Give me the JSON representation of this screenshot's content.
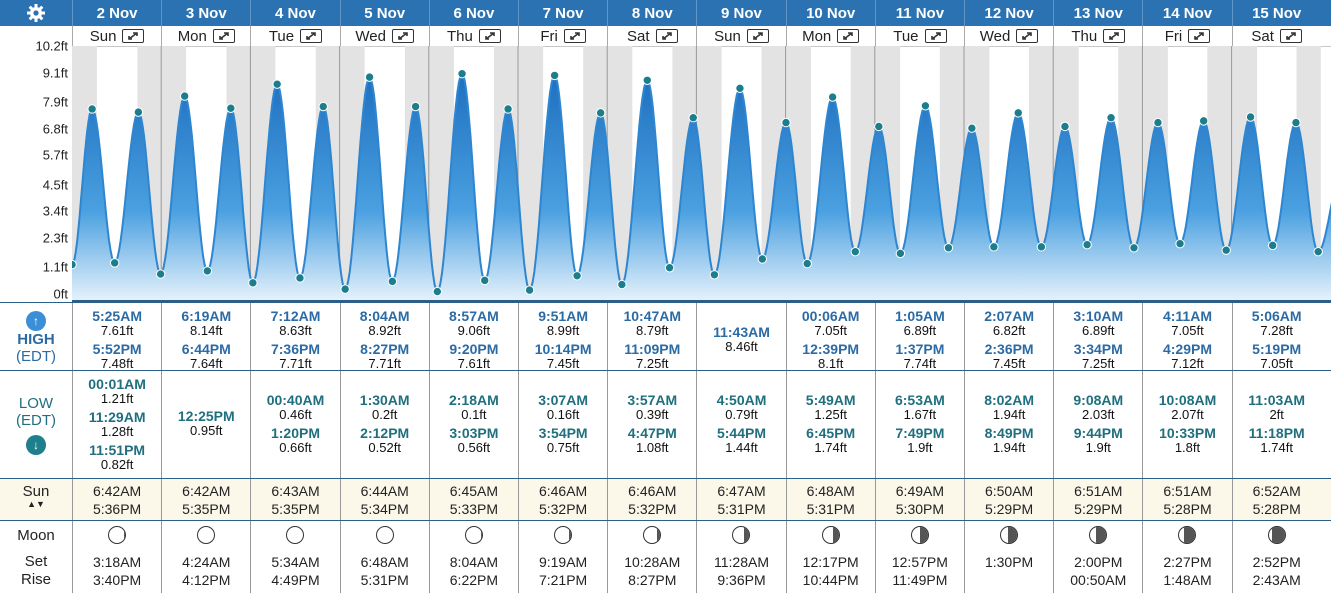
{
  "header": {
    "settings_icon": "gear-icon"
  },
  "labels": {
    "high": "HIGH",
    "high_tz": "(EDT)",
    "low": "LOW",
    "low_tz": "(EDT)",
    "sun": "Sun",
    "moon": "Moon",
    "set": "Set",
    "rise": "Rise"
  },
  "y_axis": {
    "ticks": [
      "0ft",
      "1.1ft",
      "2.3ft",
      "3.4ft",
      "4.5ft",
      "5.7ft",
      "6.8ft",
      "7.9ft",
      "9.1ft",
      "10.2ft"
    ]
  },
  "days": [
    {
      "date": "2 Nov",
      "dow": "Sun",
      "high": [
        {
          "t": "5:25AM",
          "h": "7.61ft"
        },
        {
          "t": "5:52PM",
          "h": "7.48ft"
        }
      ],
      "low": [
        {
          "t": "00:01AM",
          "h": "1.21ft"
        },
        {
          "t": "11:29AM",
          "h": "1.28ft"
        },
        {
          "t": "11:51PM",
          "h": "0.82ft"
        }
      ],
      "sun": [
        "6:42AM",
        "5:36PM"
      ],
      "moon": [
        "3:18AM",
        "3:40PM"
      ],
      "phase": 0.03
    },
    {
      "date": "3 Nov",
      "dow": "Mon",
      "high": [
        {
          "t": "6:19AM",
          "h": "8.14ft"
        },
        {
          "t": "6:44PM",
          "h": "7.64ft"
        }
      ],
      "low": [
        {
          "t": "12:25PM",
          "h": "0.95ft"
        }
      ],
      "sun": [
        "6:42AM",
        "5:35PM"
      ],
      "moon": [
        "4:24AM",
        "4:12PM"
      ],
      "phase": 0.02
    },
    {
      "date": "4 Nov",
      "dow": "Tue",
      "high": [
        {
          "t": "7:12AM",
          "h": "8.63ft"
        },
        {
          "t": "7:36PM",
          "h": "7.71ft"
        }
      ],
      "low": [
        {
          "t": "00:40AM",
          "h": "0.46ft"
        },
        {
          "t": "1:20PM",
          "h": "0.66ft"
        }
      ],
      "sun": [
        "6:43AM",
        "5:35PM"
      ],
      "moon": [
        "5:34AM",
        "4:49PM"
      ],
      "phase": 0.0
    },
    {
      "date": "5 Nov",
      "dow": "Wed",
      "high": [
        {
          "t": "8:04AM",
          "h": "8.92ft"
        },
        {
          "t": "8:27PM",
          "h": "7.71ft"
        }
      ],
      "low": [
        {
          "t": "1:30AM",
          "h": "0.2ft"
        },
        {
          "t": "2:12PM",
          "h": "0.52ft"
        }
      ],
      "sun": [
        "6:44AM",
        "5:34PM"
      ],
      "moon": [
        "6:48AM",
        "5:31PM"
      ],
      "phase": 0.01
    },
    {
      "date": "6 Nov",
      "dow": "Thu",
      "high": [
        {
          "t": "8:57AM",
          "h": "9.06ft"
        },
        {
          "t": "9:20PM",
          "h": "7.61ft"
        }
      ],
      "low": [
        {
          "t": "2:18AM",
          "h": "0.1ft"
        },
        {
          "t": "3:03PM",
          "h": "0.56ft"
        }
      ],
      "sun": [
        "6:45AM",
        "5:33PM"
      ],
      "moon": [
        "8:04AM",
        "6:22PM"
      ],
      "phase": 0.04
    },
    {
      "date": "7 Nov",
      "dow": "Fri",
      "high": [
        {
          "t": "9:51AM",
          "h": "8.99ft"
        },
        {
          "t": "10:14PM",
          "h": "7.45ft"
        }
      ],
      "low": [
        {
          "t": "3:07AM",
          "h": "0.16ft"
        },
        {
          "t": "3:54PM",
          "h": "0.75ft"
        }
      ],
      "sun": [
        "6:46AM",
        "5:32PM"
      ],
      "moon": [
        "9:19AM",
        "7:21PM"
      ],
      "phase": 0.1
    },
    {
      "date": "8 Nov",
      "dow": "Sat",
      "high": [
        {
          "t": "10:47AM",
          "h": "8.79ft"
        },
        {
          "t": "11:09PM",
          "h": "7.25ft"
        }
      ],
      "low": [
        {
          "t": "3:57AM",
          "h": "0.39ft"
        },
        {
          "t": "4:47PM",
          "h": "1.08ft"
        }
      ],
      "sun": [
        "6:46AM",
        "5:32PM"
      ],
      "moon": [
        "10:28AM",
        "8:27PM"
      ],
      "phase": 0.18
    },
    {
      "date": "9 Nov",
      "dow": "Sun",
      "high": [
        {
          "t": "11:43AM",
          "h": "8.46ft"
        }
      ],
      "low": [
        {
          "t": "4:50AM",
          "h": "0.79ft"
        },
        {
          "t": "5:44PM",
          "h": "1.44ft"
        }
      ],
      "sun": [
        "6:47AM",
        "5:31PM"
      ],
      "moon": [
        "11:28AM",
        "9:36PM"
      ],
      "phase": 0.27
    },
    {
      "date": "10 Nov",
      "dow": "Mon",
      "high": [
        {
          "t": "00:06AM",
          "h": "7.05ft"
        },
        {
          "t": "12:39PM",
          "h": "8.1ft"
        }
      ],
      "low": [
        {
          "t": "5:49AM",
          "h": "1.25ft"
        },
        {
          "t": "6:45PM",
          "h": "1.74ft"
        }
      ],
      "sun": [
        "6:48AM",
        "5:31PM"
      ],
      "moon": [
        "12:17PM",
        "10:44PM"
      ],
      "phase": 0.36
    },
    {
      "date": "11 Nov",
      "dow": "Tue",
      "high": [
        {
          "t": "1:05AM",
          "h": "6.89ft"
        },
        {
          "t": "1:37PM",
          "h": "7.74ft"
        }
      ],
      "low": [
        {
          "t": "6:53AM",
          "h": "1.67ft"
        },
        {
          "t": "7:49PM",
          "h": "1.9ft"
        }
      ],
      "sun": [
        "6:49AM",
        "5:30PM"
      ],
      "moon": [
        "12:57PM",
        "11:49PM"
      ],
      "phase": 0.45
    },
    {
      "date": "12 Nov",
      "dow": "Wed",
      "high": [
        {
          "t": "2:07AM",
          "h": "6.82ft"
        },
        {
          "t": "2:36PM",
          "h": "7.45ft"
        }
      ],
      "low": [
        {
          "t": "8:02AM",
          "h": "1.94ft"
        },
        {
          "t": "8:49PM",
          "h": "1.94ft"
        }
      ],
      "sun": [
        "6:50AM",
        "5:29PM"
      ],
      "moon": [
        "1:30PM",
        ""
      ],
      "phase": 0.5
    },
    {
      "date": "13 Nov",
      "dow": "Thu",
      "high": [
        {
          "t": "3:10AM",
          "h": "6.89ft"
        },
        {
          "t": "3:34PM",
          "h": "7.25ft"
        }
      ],
      "low": [
        {
          "t": "9:08AM",
          "h": "2.03ft"
        },
        {
          "t": "9:44PM",
          "h": "1.9ft"
        }
      ],
      "sun": [
        "6:51AM",
        "5:29PM"
      ],
      "moon": [
        "2:00PM",
        "00:50AM"
      ],
      "phase": 0.55
    },
    {
      "date": "14 Nov",
      "dow": "Fri",
      "high": [
        {
          "t": "4:11AM",
          "h": "7.05ft"
        },
        {
          "t": "4:29PM",
          "h": "7.12ft"
        }
      ],
      "low": [
        {
          "t": "10:08AM",
          "h": "2.07ft"
        },
        {
          "t": "10:33PM",
          "h": "1.8ft"
        }
      ],
      "sun": [
        "6:51AM",
        "5:28PM"
      ],
      "moon": [
        "2:27PM",
        "1:48AM"
      ],
      "phase": 0.62
    },
    {
      "date": "15 Nov",
      "dow": "Sat",
      "high": [
        {
          "t": "5:06AM",
          "h": "7.28ft"
        },
        {
          "t": "5:19PM",
          "h": "7.05ft"
        }
      ],
      "low": [
        {
          "t": "11:03AM",
          "h": "2ft"
        },
        {
          "t": "11:18PM",
          "h": "1.74ft"
        }
      ],
      "sun": [
        "6:52AM",
        "5:28PM"
      ],
      "moon": [
        "2:52PM",
        "2:43AM"
      ],
      "phase": 0.7
    }
  ],
  "colors": {
    "header": "#2b72b2",
    "wave": "#2f86d0",
    "dot": "#1c7e8c",
    "high_text": "#2b6ba5",
    "low_text": "#1f6f7f"
  }
}
